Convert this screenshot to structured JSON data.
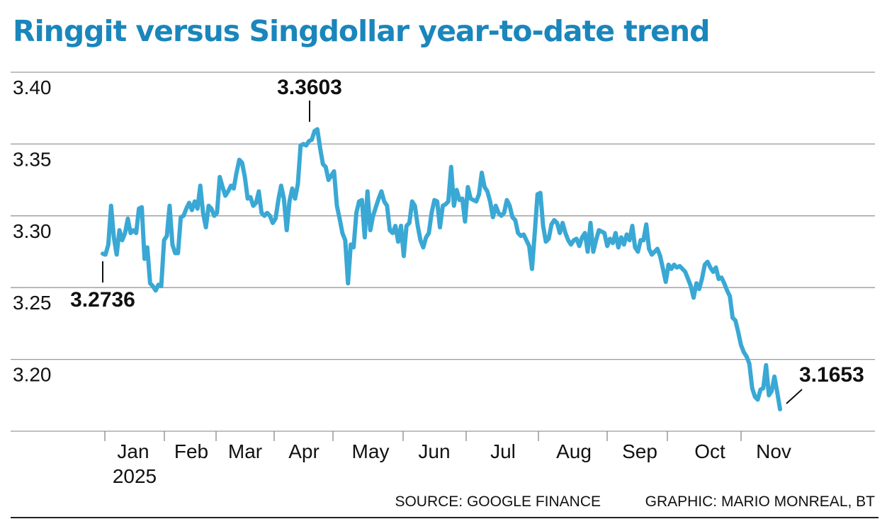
{
  "chart_data": {
    "type": "line",
    "title": "Ringgit versus Singdollar year-to-date trend",
    "xlabel": "",
    "ylabel": "",
    "ylim": [
      3.15,
      3.4
    ],
    "grid": true,
    "y_ticks": [
      "3.40",
      "3.35",
      "3.30",
      "3.25",
      "3.20"
    ],
    "x_ticks": [
      "Jan",
      "Feb",
      "Mar",
      "Apr",
      "May",
      "Jun",
      "Jul",
      "Aug",
      "Sep",
      "Oct",
      "Nov"
    ],
    "x_year_label": "2025",
    "line_color": "#3aa8d4",
    "title_color": "#1a86bb",
    "annotations": {
      "start": "3.2736",
      "peak": "3.3603",
      "end": "3.1653"
    },
    "series": [
      {
        "values": [
          3.2736,
          3.273,
          3.28,
          3.307,
          3.285,
          3.273,
          3.29,
          3.283,
          3.288,
          3.298,
          3.288,
          3.29,
          3.288,
          3.305,
          3.306,
          3.27,
          3.278,
          3.253,
          3.251,
          3.248,
          3.252,
          3.251,
          3.283,
          3.286,
          3.307,
          3.28,
          3.274,
          3.274,
          3.299,
          3.3,
          3.305,
          3.309,
          3.304,
          3.31,
          3.305,
          3.321,
          3.302,
          3.292,
          3.307,
          3.305,
          3.3,
          3.302,
          3.327,
          3.32,
          3.314,
          3.317,
          3.321,
          3.319,
          3.33,
          3.339,
          3.337,
          3.327,
          3.312,
          3.313,
          3.307,
          3.309,
          3.317,
          3.302,
          3.3,
          3.302,
          3.3,
          3.295,
          3.298,
          3.311,
          3.321,
          3.312,
          3.29,
          3.31,
          3.319,
          3.312,
          3.322,
          3.349,
          3.35,
          3.349,
          3.352,
          3.353,
          3.359,
          3.3603,
          3.347,
          3.336,
          3.334,
          3.325,
          3.328,
          3.331,
          3.307,
          3.298,
          3.288,
          3.283,
          3.253,
          3.28,
          3.278,
          3.302,
          3.31,
          3.311,
          3.285,
          3.317,
          3.29,
          3.3,
          3.306,
          3.312,
          3.317,
          3.31,
          3.307,
          3.29,
          3.288,
          3.293,
          3.282,
          3.293,
          3.272,
          3.293,
          3.295,
          3.31,
          3.307,
          3.293,
          3.283,
          3.278,
          3.285,
          3.288,
          3.302,
          3.311,
          3.31,
          3.292,
          3.307,
          3.308,
          3.31,
          3.334,
          3.307,
          3.318,
          3.311,
          3.312,
          3.296,
          3.32,
          3.312,
          3.311,
          3.31,
          3.315,
          3.33,
          3.32,
          3.317,
          3.31,
          3.299,
          3.307,
          3.302,
          3.3,
          3.302,
          3.311,
          3.307,
          3.299,
          3.297,
          3.288,
          3.286,
          3.287,
          3.283,
          3.279,
          3.263,
          3.288,
          3.315,
          3.316,
          3.293,
          3.282,
          3.284,
          3.294,
          3.297,
          3.295,
          3.288,
          3.295,
          3.288,
          3.283,
          3.28,
          3.283,
          3.284,
          3.279,
          3.285,
          3.288,
          3.275,
          3.295,
          3.275,
          3.283,
          3.29,
          3.289,
          3.288,
          3.279,
          3.284,
          3.281,
          3.288,
          3.278,
          3.285,
          3.28,
          3.287,
          3.283,
          3.293,
          3.278,
          3.275,
          3.283,
          3.283,
          3.294,
          3.277,
          3.273,
          3.275,
          3.277,
          3.272,
          3.263,
          3.254,
          3.266,
          3.263,
          3.266,
          3.264,
          3.265,
          3.263,
          3.261,
          3.256,
          3.251,
          3.243,
          3.253,
          3.249,
          3.256,
          3.266,
          3.268,
          3.264,
          3.261,
          3.264,
          3.256,
          3.257,
          3.253,
          3.248,
          3.244,
          3.229,
          3.227,
          3.219,
          3.21,
          3.205,
          3.202,
          3.197,
          3.18,
          3.174,
          3.172,
          3.179,
          3.18,
          3.196,
          3.175,
          3.178,
          3.188,
          3.177,
          3.1653
        ]
      }
    ]
  },
  "footer": {
    "source": "SOURCE: GOOGLE FINANCE",
    "graphic": "GRAPHIC: MARIO MONREAL, BT"
  }
}
